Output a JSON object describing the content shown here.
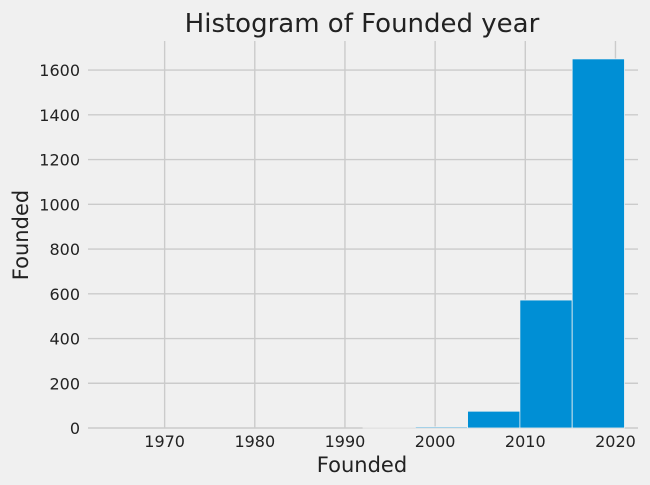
{
  "chart_data": {
    "type": "bar",
    "title": "Histogram of Founded year",
    "xlabel": "Founded",
    "ylabel": "Founded",
    "xlim": [
      1961.5,
      2022.5
    ],
    "ylim": [
      0,
      1730
    ],
    "xticks": [
      1970,
      1980,
      1990,
      2000,
      2010,
      2020
    ],
    "yticks": [
      0,
      200,
      400,
      600,
      800,
      1000,
      1200,
      1400,
      1600
    ],
    "grid": true,
    "legend": "none",
    "bins": [
      {
        "x0": 1963.0,
        "x1": 1968.8,
        "value": 0
      },
      {
        "x0": 1968.8,
        "x1": 1974.6,
        "value": 0
      },
      {
        "x0": 1974.6,
        "x1": 1980.4,
        "value": 0
      },
      {
        "x0": 1980.4,
        "x1": 1986.2,
        "value": 0
      },
      {
        "x0": 1986.2,
        "x1": 1992.0,
        "value": 0
      },
      {
        "x0": 1992.0,
        "x1": 1997.8,
        "value": 1
      },
      {
        "x0": 1997.8,
        "x1": 2003.6,
        "value": 5
      },
      {
        "x0": 2003.6,
        "x1": 2009.4,
        "value": 75
      },
      {
        "x0": 2009.4,
        "x1": 2015.2,
        "value": 572
      },
      {
        "x0": 2015.2,
        "x1": 2021.0,
        "value": 1650
      }
    ],
    "colors": {
      "bar": "#008fd5",
      "background": "#f0f0f0",
      "grid": "#cbcbcb",
      "text": "#222222"
    }
  }
}
